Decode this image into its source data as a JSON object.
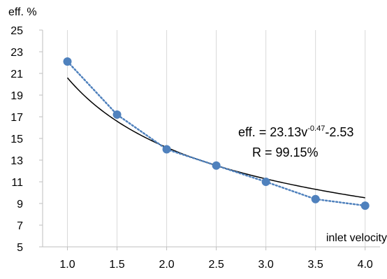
{
  "chart_data": {
    "type": "scatter",
    "ylabel": "eff. %",
    "xlabel": "inlet velocity",
    "xlim": [
      0.75,
      4.15
    ],
    "ylim": [
      5,
      25
    ],
    "x_ticks": [
      "1.0",
      "1.5",
      "2.0",
      "2.5",
      "3.0",
      "3.5",
      "4.0"
    ],
    "y_ticks": [
      "5",
      "7",
      "9",
      "11",
      "13",
      "15",
      "17",
      "19",
      "21",
      "23",
      "25"
    ],
    "grid": "vertical",
    "series": [
      {
        "x": [
          1.0,
          1.5,
          2.0,
          2.5,
          3.0,
          3.5,
          4.0
        ],
        "y": [
          22.1,
          17.2,
          14.0,
          12.5,
          11.0,
          9.4,
          8.8
        ],
        "color": "#4f81bd",
        "connector": "dotted"
      }
    ],
    "fit": {
      "a": 23.13,
      "b": -0.47,
      "c": -2.53,
      "x_range": [
        1.0,
        4.0
      ],
      "color": "#000000"
    },
    "annotation": {
      "eq_prefix": "eff. = 23.13v",
      "eq_exponent": "-0.47",
      "eq_suffix": "-2.53",
      "r_text": "R = 99.15%"
    }
  }
}
